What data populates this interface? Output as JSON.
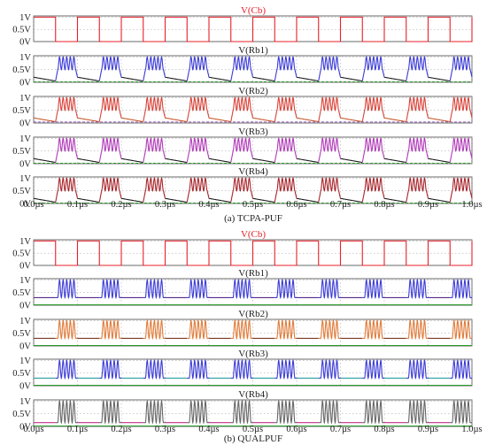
{
  "chart_data": [
    {
      "type": "line",
      "caption": "(a) TCPA-PUF",
      "x_unit": "µs",
      "xlim": [
        0.0,
        1.0
      ],
      "x_ticks": [
        "0.0µs",
        "0.1µs",
        "0.2µs",
        "0.3µs",
        "0.4µs",
        "0.5µs",
        "0.6µs",
        "0.7µs",
        "0.8µs",
        "0.9µs",
        "1.0µs"
      ],
      "y_ticks": [
        "1V",
        "0.5V",
        "0V"
      ],
      "ylim": [
        0,
        1.05
      ],
      "grid": true,
      "panels": [
        {
          "title": "V(Cb)",
          "title_color": "#e8202a",
          "kind": "square",
          "period_us": 0.1,
          "high_first_us": 0.05,
          "series": [
            {
              "color": "#e8202a",
              "values": [
                0,
                1
              ]
            }
          ]
        },
        {
          "title": "V(Rb1)",
          "title_color": "#222222",
          "kind": "burst",
          "osc_color": "#3b3bd6",
          "low_color": "#1a1a1a",
          "cycles": 5,
          "osc_min": 0.5,
          "osc_max": 1.0,
          "decay_start": 0.2,
          "decay_end": 0.05,
          "extra_color": "#1fa51f",
          "extra_level": 0.02
        },
        {
          "title": "V(Rb2)",
          "title_color": "#222222",
          "kind": "burst",
          "osc_color": "#d8433a",
          "low_color": "#c75a2a",
          "cycles": 5,
          "osc_min": 0.5,
          "osc_max": 1.0,
          "decay_start": 0.2,
          "decay_end": 0.05,
          "extra_color": "#8a3ab8",
          "extra_level": 0.04
        },
        {
          "title": "V(Rb3)",
          "title_color": "#222222",
          "kind": "burst",
          "osc_color": "#b13bb8",
          "low_color": "#1a1a1a",
          "cycles": 5,
          "osc_min": 0.5,
          "osc_max": 1.0,
          "decay_start": 0.2,
          "decay_end": 0.05,
          "extra_color": "#1fa51f",
          "extra_level": 0.02
        },
        {
          "title": "V(Rb4)",
          "title_color": "#222222",
          "kind": "burst",
          "osc_color": "#a8262c",
          "low_color": "#1a1a1a",
          "cycles": 5,
          "osc_min": 0.5,
          "osc_max": 1.0,
          "decay_start": 0.2,
          "decay_end": 0.05,
          "extra_color": "#1fa51f",
          "extra_level": 0.02
        }
      ]
    },
    {
      "type": "line",
      "caption": "(b) QUALPUF",
      "x_unit": "µs",
      "xlim": [
        0.0,
        1.0
      ],
      "x_ticks": [
        "0.0µs",
        "0.1µs",
        "0.2µs",
        "0.3µs",
        "0.4µs",
        "0.5µs",
        "0.6µs",
        "0.7µs",
        "0.8µs",
        "0.9µs",
        "1.0µs"
      ],
      "y_ticks": [
        "1V",
        "0.5V",
        "0V"
      ],
      "ylim": [
        0,
        1.05
      ],
      "grid": true,
      "panels": [
        {
          "title": "V(Cb)",
          "title_color": "#e8202a",
          "kind": "square",
          "period_us": 0.1,
          "high_first_us": 0.05,
          "series": [
            {
              "color": "#e8202a",
              "values": [
                0,
                1
              ]
            }
          ]
        },
        {
          "title": "V(Rb1)",
          "title_color": "#222222",
          "kind": "burst",
          "osc_color": "#3b3bd6",
          "low_color": "#5a2a8a",
          "cycles": 5,
          "osc_min": 0.3,
          "osc_max": 1.0,
          "decay_start": 0.3,
          "decay_end": 0.3,
          "extra_color": "#1fa51f",
          "extra_level": 0.02
        },
        {
          "title": "V(Rb2)",
          "title_color": "#222222",
          "kind": "burst",
          "osc_color": "#e07b39",
          "low_color": "#7a3a2a",
          "cycles": 5,
          "osc_min": 0.3,
          "osc_max": 1.0,
          "decay_start": 0.3,
          "decay_end": 0.3,
          "extra_color": "#1fa51f",
          "extra_level": 0.02
        },
        {
          "title": "V(Rb3)",
          "title_color": "#222222",
          "kind": "burst",
          "osc_color": "#3b3bd6",
          "low_color": "#2aa0a0",
          "cycles": 5,
          "osc_min": 0.3,
          "osc_max": 1.0,
          "decay_start": 0.3,
          "decay_end": 0.3,
          "extra_color": "#1fa51f",
          "extra_level": 0.02
        },
        {
          "title": "V(Rb4)",
          "title_color": "#222222",
          "kind": "burst",
          "osc_color": "#666666",
          "low_color": "#c0308a",
          "cycles": 5,
          "osc_min": 0.15,
          "osc_max": 1.0,
          "decay_start": 0.15,
          "decay_end": 0.15,
          "extra_color": "#1fa51f",
          "extra_level": 0.02
        }
      ]
    }
  ]
}
